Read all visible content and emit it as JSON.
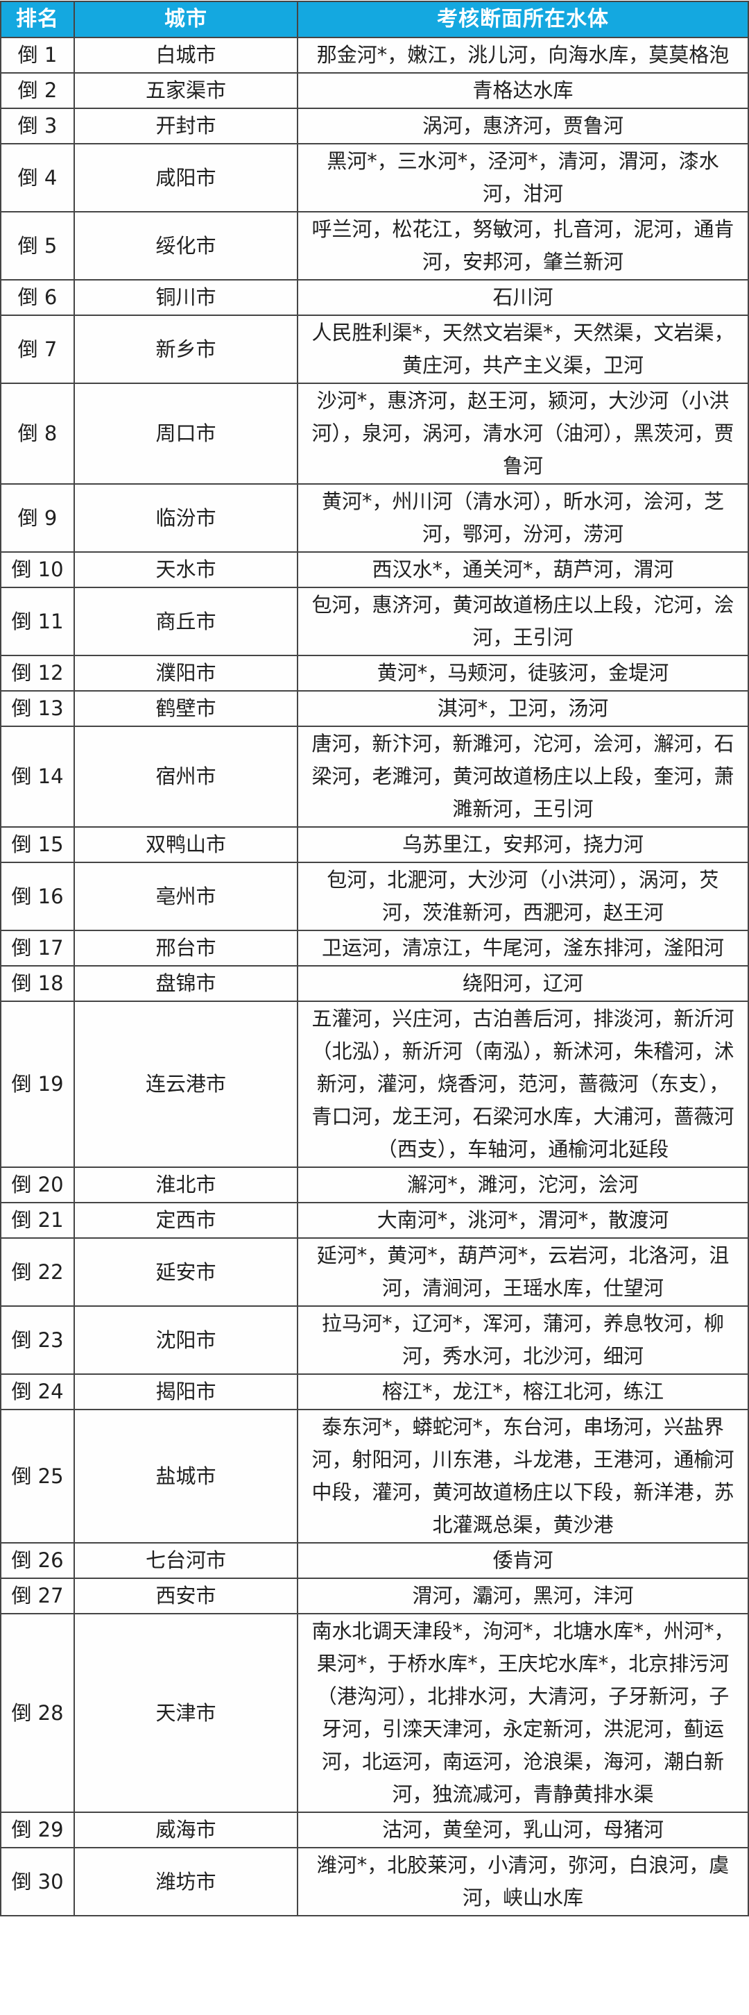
{
  "colors": {
    "header_bg": "#14a8e0",
    "header_text": "#ffffff",
    "body_text": "#202020",
    "border": "#454545"
  },
  "table": {
    "headers": [
      "排名",
      "城市",
      "考核断面所在水体"
    ],
    "rows": [
      {
        "rank": "倒 1",
        "city": "白城市",
        "waters": "那金河*，嫩江，洮儿河，向海水库，莫莫格泡"
      },
      {
        "rank": "倒 2",
        "city": "五家渠市",
        "waters": "青格达水库"
      },
      {
        "rank": "倒 3",
        "city": "开封市",
        "waters": "涡河，惠济河，贾鲁河"
      },
      {
        "rank": "倒 4",
        "city": "咸阳市",
        "waters": "黑河*，三水河*，泾河*，清河，渭河，漆水河，泔河"
      },
      {
        "rank": "倒 5",
        "city": "绥化市",
        "waters": "呼兰河，松花江，努敏河，扎音河，泥河，通肯河，安邦河，肇兰新河"
      },
      {
        "rank": "倒 6",
        "city": "铜川市",
        "waters": "石川河"
      },
      {
        "rank": "倒 7",
        "city": "新乡市",
        "waters": "人民胜利渠*，天然文岩渠*，天然渠，文岩渠，黄庄河，共产主义渠，卫河"
      },
      {
        "rank": "倒 8",
        "city": "周口市",
        "waters": "沙河*，惠济河，赵王河，颍河，大沙河（小洪河），泉河，涡河，清水河（油河），黑茨河，贾鲁河"
      },
      {
        "rank": "倒 9",
        "city": "临汾市",
        "waters": "黄河*，州川河（清水河），昕水河，浍河，芝河，鄂河，汾河，涝河"
      },
      {
        "rank": "倒 10",
        "city": "天水市",
        "waters": "西汉水*，通关河*，葫芦河，渭河"
      },
      {
        "rank": "倒 11",
        "city": "商丘市",
        "waters": "包河，惠济河，黄河故道杨庄以上段，沱河，浍河，王引河"
      },
      {
        "rank": "倒 12",
        "city": "濮阳市",
        "waters": "黄河*，马颊河，徒骇河，金堤河"
      },
      {
        "rank": "倒 13",
        "city": "鹤壁市",
        "waters": "淇河*，卫河，汤河"
      },
      {
        "rank": "倒 14",
        "city": "宿州市",
        "waters": "唐河，新汴河，新濉河，沱河，浍河，澥河，石梁河，老濉河，黄河故道杨庄以上段，奎河，萧濉新河，王引河"
      },
      {
        "rank": "倒 15",
        "city": "双鸭山市",
        "waters": "乌苏里江，安邦河，挠力河"
      },
      {
        "rank": "倒 16",
        "city": "亳州市",
        "waters": "包河，北淝河，大沙河（小洪河），涡河，芡河，茨淮新河，西淝河，赵王河"
      },
      {
        "rank": "倒 17",
        "city": "邢台市",
        "waters": "卫运河，清凉江，牛尾河，滏东排河，滏阳河"
      },
      {
        "rank": "倒 18",
        "city": "盘锦市",
        "waters": "绕阳河，辽河"
      },
      {
        "rank": "倒 19",
        "city": "连云港市",
        "waters": "五灌河，兴庄河，古泊善后河，排淡河，新沂河（北泓），新沂河（南泓），新沭河，朱稽河，沭新河，灌河，烧香河，范河，蔷薇河（东支），青口河，龙王河，石梁河水库，大浦河，蔷薇河（西支），车轴河，通榆河北延段"
      },
      {
        "rank": "倒 20",
        "city": "淮北市",
        "waters": "澥河*，濉河，沱河，浍河"
      },
      {
        "rank": "倒 21",
        "city": "定西市",
        "waters": "大南河*，洮河*，渭河*，散渡河"
      },
      {
        "rank": "倒 22",
        "city": "延安市",
        "waters": "延河*，黄河*，葫芦河*，云岩河，北洛河，沮河，清涧河，王瑶水库，仕望河"
      },
      {
        "rank": "倒 23",
        "city": "沈阳市",
        "waters": "拉马河*，辽河*，浑河，蒲河，养息牧河，柳河，秀水河，北沙河，细河"
      },
      {
        "rank": "倒 24",
        "city": "揭阳市",
        "waters": "榕江*，龙江*，榕江北河，练江"
      },
      {
        "rank": "倒 25",
        "city": "盐城市",
        "waters": "泰东河*，蟒蛇河*，东台河，串场河，兴盐界河，射阳河，川东港，斗龙港，王港河，通榆河中段，灌河，黄河故道杨庄以下段，新洋港，苏北灌溉总渠，黄沙港"
      },
      {
        "rank": "倒 26",
        "city": "七台河市",
        "waters": "倭肯河"
      },
      {
        "rank": "倒 27",
        "city": "西安市",
        "waters": "渭河，灞河，黑河，沣河"
      },
      {
        "rank": "倒 28",
        "city": "天津市",
        "waters": "南水北调天津段*，泃河*，北塘水库*，州河*，果河*，于桥水库*，王庆坨水库*，北京排污河（港沟河），北排水河，大清河，子牙新河，子牙河，引滦天津河，永定新河，洪泥河，蓟运河，北运河，南运河，沧浪渠，海河，潮白新河，独流减河，青静黄排水渠"
      },
      {
        "rank": "倒 29",
        "city": "威海市",
        "waters": "沽河，黄垒河，乳山河，母猪河"
      },
      {
        "rank": "倒 30",
        "city": "潍坊市",
        "waters": "潍河*，北胶莱河，小清河，弥河，白浪河，虞河，峡山水库"
      }
    ]
  }
}
